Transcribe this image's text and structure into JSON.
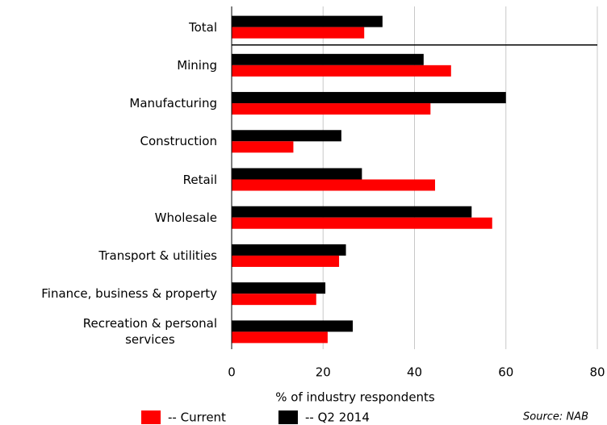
{
  "chart_data": {
    "type": "hbar",
    "categories": [
      "Total",
      "Mining",
      "Manufacturing",
      "Construction",
      "Retail",
      "Wholesale",
      "Transport & utilities",
      "Finance, business & property",
      "Recreation & personal\nservices"
    ],
    "series": [
      {
        "name": "-- Current",
        "color": "#ff0000",
        "values": [
          29,
          48,
          43.5,
          13.5,
          44.5,
          57,
          23.5,
          18.5,
          21
        ]
      },
      {
        "name": "-- Q2 2014",
        "color": "#000000",
        "values": [
          33,
          42,
          60,
          24,
          28.5,
          52.5,
          25,
          20.5,
          26.5
        ]
      }
    ],
    "xlim": [
      0,
      80
    ],
    "xticks": [
      0,
      20,
      40,
      60,
      80
    ],
    "grid": true,
    "x_label": "% of industry respondents",
    "source": "Source: NAB"
  }
}
